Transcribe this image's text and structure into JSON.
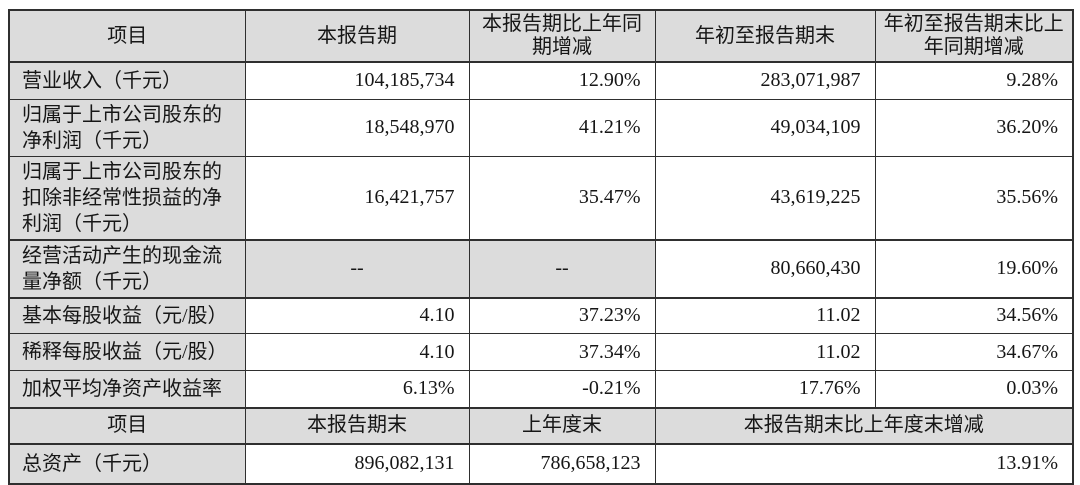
{
  "colors": {
    "border": "#2f2f2f",
    "header_bg": "#dcdcdc",
    "text": "#161616",
    "page_bg": "#ffffff"
  },
  "table": {
    "header1": [
      "项目",
      "本报告期",
      "本报告期比上年同期增减",
      "年初至报告期末",
      "年初至报告期末比上年同期增减"
    ],
    "rows": [
      {
        "label": "营业收入（千元）",
        "values": [
          "104,185,734",
          "12.90%",
          "283,071,987",
          "9.28%"
        ]
      },
      {
        "label": "归属于上市公司股东的净利润（千元）",
        "values": [
          "18,548,970",
          "41.21%",
          "49,034,109",
          "36.20%"
        ]
      },
      {
        "label": "归属于上市公司股东的扣除非经常性损益的净利润（千元）",
        "values": [
          "16,421,757",
          "35.47%",
          "43,619,225",
          "35.56%"
        ]
      },
      {
        "label": "经营活动产生的现金流量净额（千元）",
        "values": [
          "--",
          "--",
          "80,660,430",
          "19.60%"
        ],
        "gray_value_cells": [
          0,
          1
        ],
        "centered_value_cells": [
          0,
          1
        ]
      },
      {
        "label": "基本每股收益（元/股）",
        "values": [
          "4.10",
          "37.23%",
          "11.02",
          "34.56%"
        ]
      },
      {
        "label": "稀释每股收益（元/股）",
        "values": [
          "4.10",
          "37.34%",
          "11.02",
          "34.67%"
        ]
      },
      {
        "label": "加权平均净资产收益率",
        "values": [
          "6.13%",
          "-0.21%",
          "17.76%",
          "0.03%"
        ]
      }
    ],
    "header2": [
      "项目",
      "本报告期末",
      "上年度末",
      "本报告期末比上年度末增减"
    ],
    "rows2": [
      {
        "label": "总资产（千元）",
        "values": [
          "896,082,131",
          "786,658,123",
          "13.91%"
        ]
      }
    ]
  }
}
